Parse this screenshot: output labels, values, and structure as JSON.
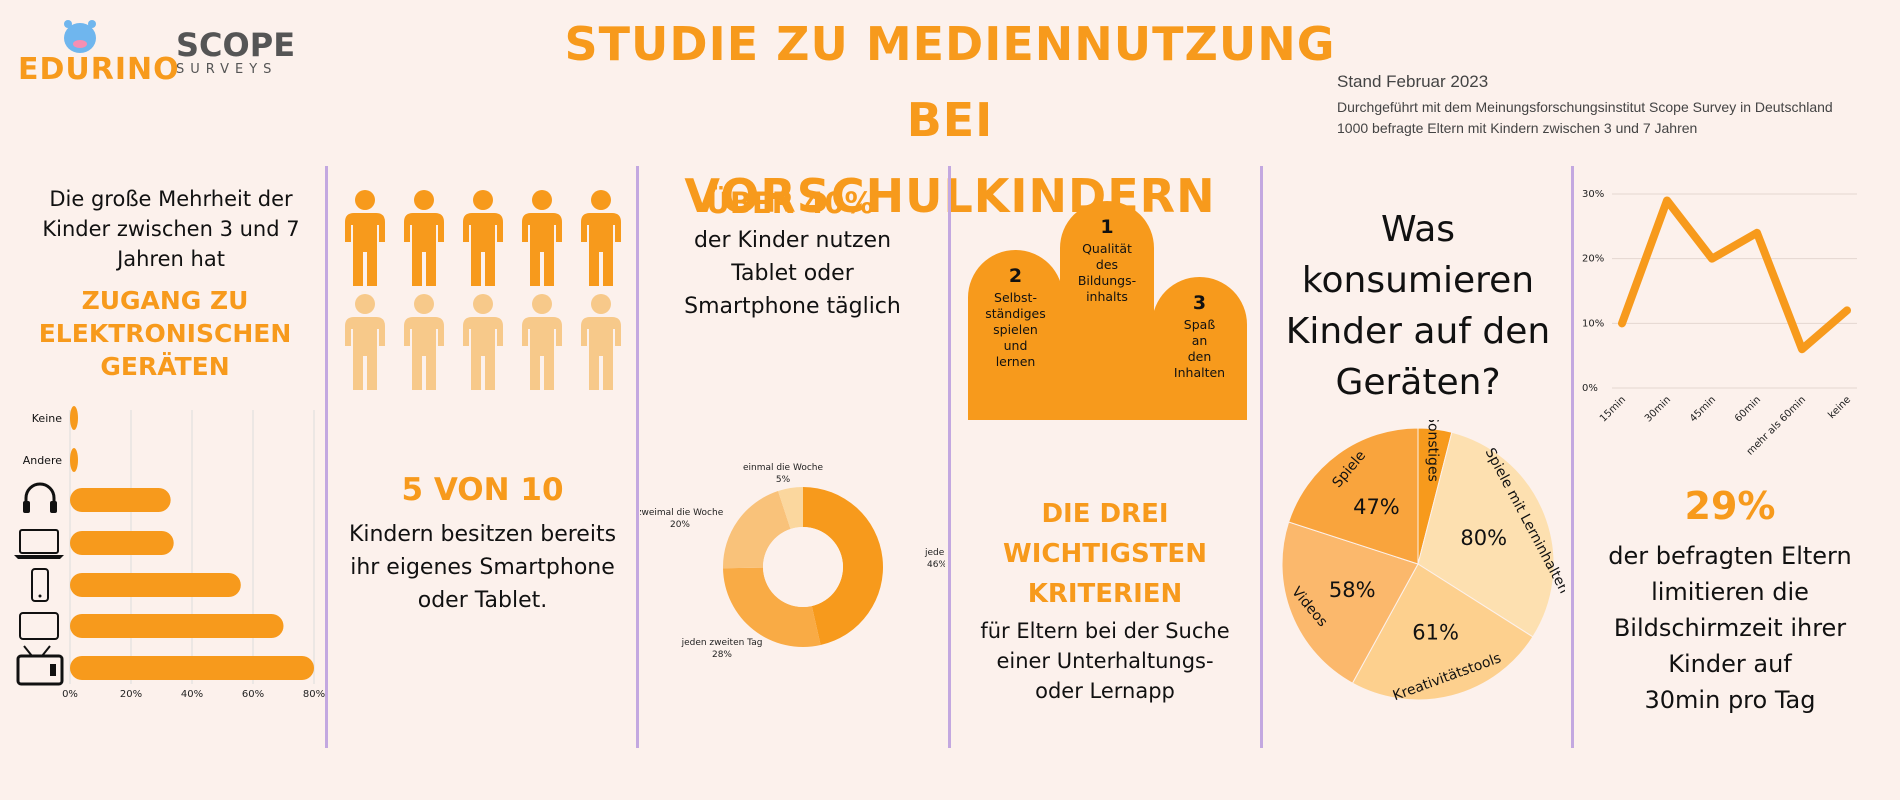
{
  "header": {
    "title_line1": "Studie zu Mediennutzung bei",
    "title_line2": "Vorschulkindern",
    "logo_edurino": "EDURINO",
    "logo_scope_top": "SCOPE",
    "logo_scope_bottom": "SURVEYS",
    "meta_date": "Stand Februar 2023",
    "meta_line1": "Durchgeführt mit dem Meinungsforschungsinstitut Scope Survey in Deutschland",
    "meta_line2": "1000 befragte Eltern mit Kindern zwischen 3 und 7 Jahren"
  },
  "panel1": {
    "intro": "Die große Mehrheit der Kinder zwischen 3 und 7 Jahren hat",
    "highlight": "ZUGANG ZU ELEKTRONISCHEN GERÄTEN"
  },
  "panel2": {
    "highlight": "5 VON 10",
    "text": "Kindern besitzen bereits ihr eigenes Smartphone oder Tablet.",
    "icon_total": 10,
    "icon_filled": 5
  },
  "panel3": {
    "highlight": "ÜBER 40%",
    "text": "der Kinder nutzen Tablet oder Smartphone täglich"
  },
  "panel4": {
    "highlight": "DIE DREI WICHTIGSTEN KRITERIEN",
    "text": "für Eltern bei der Suche einer Unterhaltungs- oder Lernapp",
    "podium": [
      {
        "rank": "2",
        "label": "Selbst- ständiges spielen und lernen"
      },
      {
        "rank": "1",
        "label": "Qualität des Bildungs- inhalts"
      },
      {
        "rank": "3",
        "label": "Spaß an den Inhalten"
      }
    ]
  },
  "panel5": {
    "question": "Was konsumieren Kinder auf den Geräten?"
  },
  "panel6": {
    "highlight": "29%",
    "text_line1": "der befragten Eltern limitieren die Bildschirmzeit ihrer Kinder auf",
    "text_line2": "30min pro Tag"
  },
  "colors": {
    "accent": "#f79a1c",
    "light_accent": "#f7c98a",
    "background": "#fcf1ec",
    "divider": "#c3a8e0"
  },
  "chart_data": [
    {
      "type": "bar",
      "orientation": "horizontal",
      "categories": [
        "Keine",
        "Andere",
        "headphones-icon",
        "laptop-icon",
        "smartphone-icon",
        "tablet-icon",
        "tv-icon"
      ],
      "values": [
        2,
        2,
        33,
        34,
        56,
        70,
        80
      ],
      "x_ticks": [
        "0%",
        "20%",
        "40%",
        "60%",
        "80%"
      ],
      "xlim": [
        0,
        80
      ],
      "grid": true
    },
    {
      "type": "pie",
      "donut": true,
      "labels": [
        "jeden Tag",
        "jeden zweiten Tag",
        "zweimal die Woche",
        "einmal die Woche"
      ],
      "value_labels": [
        "46%",
        "28%",
        "20%",
        "5%"
      ],
      "values": [
        46,
        28,
        20,
        5
      ],
      "colors": [
        "#f79a1c",
        "#f9ab45",
        "#f9c27a",
        "#fbd79e"
      ]
    },
    {
      "type": "pie",
      "labels": [
        "Sonstiges",
        "Spiele mit Lerninhalten",
        "Kreativitätstools",
        "Videos",
        "Spiele"
      ],
      "value_labels": [
        "",
        "80%",
        "61%",
        "58%",
        "47%"
      ],
      "values": [
        4,
        30,
        24,
        22,
        20
      ],
      "colors": [
        "#f79a1c",
        "#fde0b0",
        "#fdd08e",
        "#fbb86c",
        "#f9a43d"
      ]
    },
    {
      "type": "line",
      "categories": [
        "15min",
        "30min",
        "45min",
        "60min",
        "mehr als 60min",
        "keine"
      ],
      "values": [
        10,
        29,
        20,
        24,
        6,
        12
      ],
      "y_ticks": [
        "0%",
        "10%",
        "20%",
        "30%"
      ],
      "ylim": [
        0,
        30
      ],
      "grid": true
    }
  ]
}
